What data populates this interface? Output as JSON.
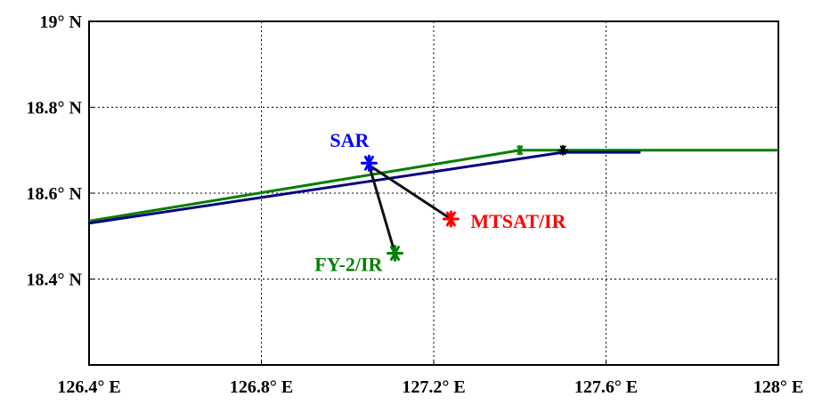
{
  "chart_data": {
    "type": "scatter",
    "title": "",
    "xlabel": "",
    "ylabel": "",
    "xlim": [
      126.4,
      128.0
    ],
    "ylim": [
      18.2,
      19.0
    ],
    "grid": true,
    "x_ticks": [
      {
        "value": 126.4,
        "label": "126.4° E"
      },
      {
        "value": 126.8,
        "label": "126.8° E"
      },
      {
        "value": 127.2,
        "label": "127.2° E"
      },
      {
        "value": 127.6,
        "label": "127.6° E"
      },
      {
        "value": 128.0,
        "label": "128° E"
      }
    ],
    "y_ticks": [
      {
        "value": 18.2,
        "label": ""
      },
      {
        "value": 18.4,
        "label": "18.4° N"
      },
      {
        "value": 18.6,
        "label": "18.6° N"
      },
      {
        "value": 18.8,
        "label": "18.8° N"
      },
      {
        "value": 19.0,
        "label": "19° N"
      }
    ],
    "tracks": [
      {
        "color": "#008000",
        "points": [
          [
            126.4,
            18.535
          ],
          [
            127.4,
            18.7
          ],
          [
            128.0,
            18.7
          ]
        ]
      },
      {
        "color": "#000080",
        "points": [
          [
            126.4,
            18.53
          ],
          [
            127.5,
            18.695
          ],
          [
            127.68,
            18.695
          ]
        ]
      }
    ],
    "track_markers": [
      {
        "color": "#008000",
        "x": 127.4,
        "y": 18.7
      },
      {
        "color": "#000000",
        "x": 127.5,
        "y": 18.7
      }
    ],
    "connectors": [
      {
        "from": [
          127.05,
          18.665
        ],
        "to": [
          127.11,
          18.46
        ]
      },
      {
        "from": [
          127.05,
          18.665
        ],
        "to": [
          127.24,
          18.54
        ]
      }
    ],
    "points": [
      {
        "label": "SAR",
        "x": 127.05,
        "y": 18.67,
        "color": "#0000ff"
      },
      {
        "label": "MTSAT/IR",
        "x": 127.24,
        "y": 18.54,
        "color": "#ff0000"
      },
      {
        "label": "FY-2/IR",
        "x": 127.11,
        "y": 18.46,
        "color": "#008000"
      }
    ]
  }
}
